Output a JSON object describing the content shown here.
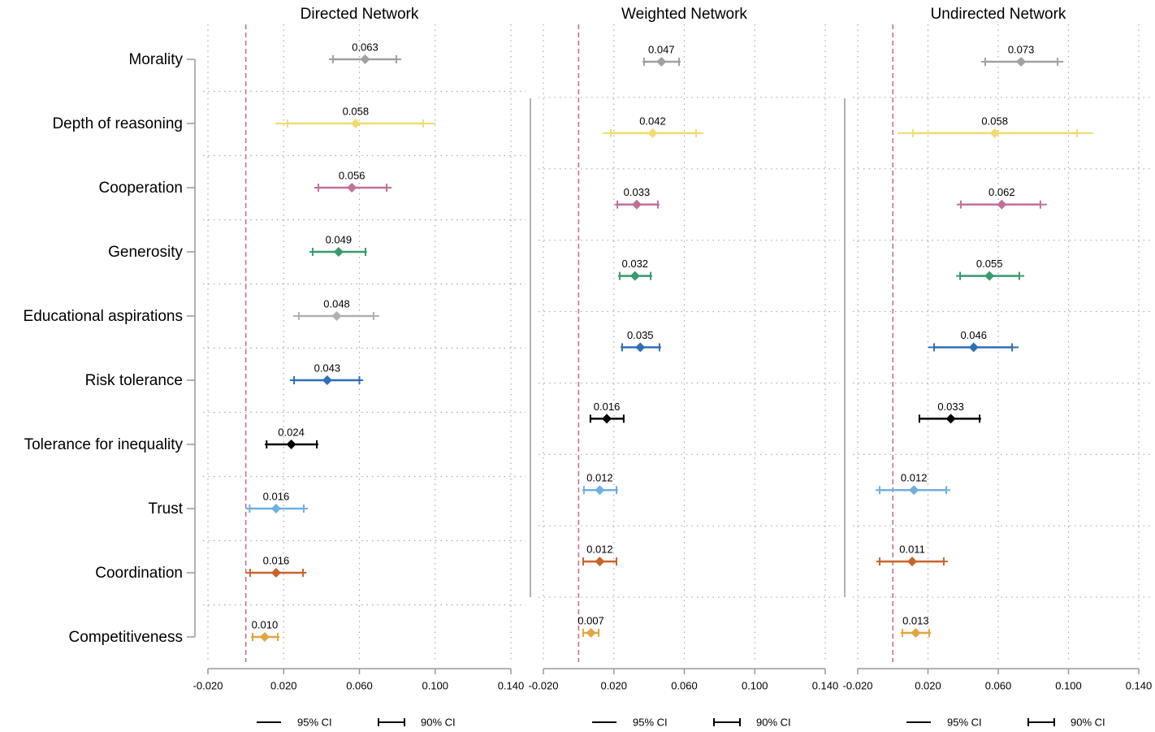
{
  "chart_data": [
    {
      "type": "forest",
      "title": "Directed Network",
      "categories": [
        "Morality",
        "Depth of reasoning",
        "Cooperation",
        "Generosity",
        "Educational aspirations",
        "Risk tolerance",
        "Tolerance for inequality",
        "Trust",
        "Coordination",
        "Competitiveness"
      ],
      "values": [
        0.063,
        0.058,
        0.056,
        0.049,
        0.048,
        0.043,
        0.024,
        0.016,
        0.016,
        0.01
      ],
      "value_labels": [
        "0.063",
        "0.058",
        "0.056",
        "0.049",
        "0.048",
        "0.043",
        "0.024",
        "0.016",
        "0.016",
        "0.010"
      ],
      "ci95_low": [
        0.0439,
        0.0156,
        0.0362,
        0.0336,
        0.025,
        0.0233,
        0.01,
        0.0002,
        0.0002,
        0.0027
      ],
      "ci95_high": [
        0.0821,
        0.1,
        0.077,
        0.064,
        0.0705,
        0.062,
        0.0383,
        0.0328,
        0.032,
        0.0178
      ],
      "ci90_low": [
        0.046,
        0.022,
        0.0383,
        0.0353,
        0.028,
        0.0255,
        0.011,
        0.002,
        0.0023,
        0.0036
      ],
      "ci90_high": [
        0.0795,
        0.0937,
        0.0744,
        0.0632,
        0.0675,
        0.06,
        0.0375,
        0.0306,
        0.0302,
        0.0169
      ],
      "colors": [
        "#a0a0a0",
        "#f0dc6e",
        "#c0709a",
        "#3a9a6e",
        "#b0b0b0",
        "#2f6fb5",
        "#000000",
        "#6fb0e0",
        "#c8652a",
        "#e0a640"
      ],
      "xlim": [
        -0.02,
        0.14
      ],
      "xticks": [
        {
          "value": -0.02,
          "label": "-0.020"
        },
        {
          "value": 0.02,
          "label": "0.020"
        },
        {
          "value": 0.06,
          "label": "0.060"
        },
        {
          "value": 0.1,
          "label": "0.100"
        },
        {
          "value": 0.14,
          "label": "0.140"
        }
      ],
      "reference_line": 0,
      "grid": true,
      "legend": [
        "95% CI",
        "90% CI"
      ]
    },
    {
      "type": "forest",
      "title": "Weighted Network",
      "values": [
        0.047,
        0.042,
        0.033,
        0.032,
        0.035,
        0.016,
        0.012,
        0.012,
        0.007
      ],
      "value_labels": [
        "0.047",
        "0.042",
        "0.033",
        "0.032",
        "0.035",
        "0.016",
        "0.012",
        "0.012",
        "0.007"
      ],
      "ci95_low": [
        0.0362,
        0.0137,
        0.0206,
        0.0224,
        0.0238,
        0.0063,
        0.0021,
        0.0021,
        0.0021
      ],
      "ci95_high": [
        0.0579,
        0.0708,
        0.0459,
        0.0418,
        0.0469,
        0.0261,
        0.0224,
        0.022,
        0.0118
      ],
      "ci90_low": [
        0.0372,
        0.0183,
        0.022,
        0.0233,
        0.0247,
        0.0067,
        0.003,
        0.0026,
        0.0026
      ],
      "ci90_high": [
        0.057,
        0.0667,
        0.045,
        0.0409,
        0.0459,
        0.0256,
        0.0215,
        0.0215,
        0.0114
      ],
      "colors": [
        "#a0a0a0",
        "#f0dc6e",
        "#c0709a",
        "#3a9a6e",
        "#2f6fb5",
        "#000000",
        "#6fb0e0",
        "#c8652a",
        "#e0a640"
      ],
      "xlim": [
        -0.02,
        0.14
      ],
      "xticks": [
        {
          "value": -0.02,
          "label": "-0.020"
        },
        {
          "value": 0.02,
          "label": "0.020"
        },
        {
          "value": 0.06,
          "label": "0.060"
        },
        {
          "value": 0.1,
          "label": "0.100"
        },
        {
          "value": 0.14,
          "label": "0.140"
        }
      ],
      "reference_line": 0,
      "grid": true,
      "legend": [
        "95% CI",
        "90% CI"
      ]
    },
    {
      "type": "forest",
      "title": "Undirected Network",
      "values": [
        0.073,
        0.058,
        0.062,
        0.055,
        0.046,
        0.033,
        0.012,
        0.011,
        0.013
      ],
      "value_labels": [
        "0.073",
        "0.058",
        "0.062",
        "0.055",
        "0.046",
        "0.033",
        "0.012",
        "0.011",
        "0.013"
      ],
      "ci95_low": [
        0.0503,
        0.0027,
        0.0364,
        0.036,
        0.0202,
        0.0147,
        -0.0098,
        -0.0094,
        0.0045
      ],
      "ci95_high": [
        0.097,
        0.114,
        0.0877,
        0.0748,
        0.0716,
        0.0503,
        0.0327,
        0.0313,
        0.0216
      ],
      "ci90_low": [
        0.0526,
        0.0114,
        0.0387,
        0.0383,
        0.0235,
        0.0151,
        -0.0075,
        -0.0075,
        0.0054
      ],
      "ci90_high": [
        0.0938,
        0.1049,
        0.084,
        0.072,
        0.0679,
        0.0494,
        0.0304,
        0.029,
        0.0207
      ],
      "colors": [
        "#a0a0a0",
        "#f0dc6e",
        "#c0709a",
        "#3a9a6e",
        "#2f6fb5",
        "#000000",
        "#6fb0e0",
        "#c8652a",
        "#e0a640"
      ],
      "xlim": [
        -0.02,
        0.14
      ],
      "xticks": [
        {
          "value": -0.02,
          "label": "-0.020"
        },
        {
          "value": 0.02,
          "label": "0.020"
        },
        {
          "value": 0.06,
          "label": "0.060"
        },
        {
          "value": 0.1,
          "label": "0.100"
        },
        {
          "value": 0.14,
          "label": "0.140"
        }
      ],
      "reference_line": 0,
      "grid": true,
      "legend": [
        "95% CI",
        "90% CI"
      ]
    }
  ]
}
